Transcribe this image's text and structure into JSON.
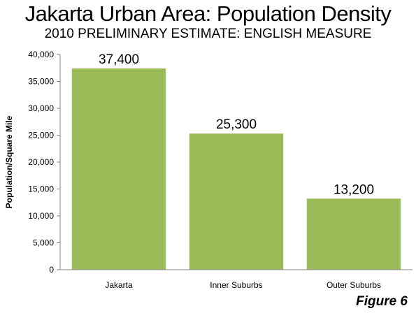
{
  "chart_data": {
    "type": "bar",
    "title": "Jakarta Urban Area: Population Density",
    "subtitle": "2010 PRELIMINARY ESTIMATE: ENGLISH MEASURE",
    "xlabel": "",
    "ylabel": "Population/Square Mile",
    "categories": [
      "Jakarta",
      "Inner Suburbs",
      "Outer Suburbs"
    ],
    "values": [
      37400,
      25300,
      13200
    ],
    "data_labels": [
      "37,400",
      "25,300",
      "13,200"
    ],
    "ylim": [
      0,
      40000
    ],
    "yticks": [
      0,
      5000,
      10000,
      15000,
      20000,
      25000,
      30000,
      35000,
      40000
    ],
    "ytick_labels": [
      "0",
      "5,000",
      "10,000",
      "15,000",
      "20,000",
      "25,000",
      "30,000",
      "35,000",
      "40,000"
    ],
    "grid": false,
    "legend": "none",
    "bar_color": "#9BBB59"
  },
  "figure_label": "Figure 6"
}
